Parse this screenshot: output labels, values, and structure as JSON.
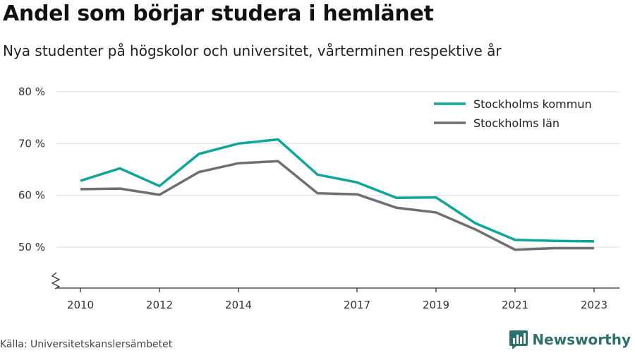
{
  "header": {
    "title": "Andel som börjar studera i hemlänet",
    "subtitle": "Nya studenter på högskolor och universitet, vårterminen respektive år"
  },
  "footer": {
    "source": "Källa: Universitetskanslersämbetet",
    "brand": "Newsworthy",
    "brand_icon": "newsworthy-logo-icon"
  },
  "colors": {
    "kommun": "#0fa59a",
    "lan": "#6e6e73",
    "grid": "#dddddd",
    "axis": "#333333",
    "brand": "#2e6f6b"
  },
  "chart_data": {
    "type": "line",
    "x": [
      2010,
      2011,
      2012,
      2013,
      2014,
      2015,
      2016,
      2017,
      2018,
      2019,
      2020,
      2021,
      2022,
      2023
    ],
    "x_tick_labels": [
      "2010",
      "2012",
      "2014",
      "2017",
      "2019",
      "2021",
      "2023"
    ],
    "y_tick_labels": [
      "50 %",
      "60 %",
      "70 %",
      "80 %"
    ],
    "y_ticks": [
      50,
      60,
      70,
      80
    ],
    "ylim": [
      42,
      80
    ],
    "xlim": [
      2009.4,
      2023.7
    ],
    "axis_break": true,
    "grid": true,
    "legend_position": "top-right",
    "series": [
      {
        "name": "Stockholms kommun",
        "color": "#0fa59a",
        "values": [
          62.8,
          65.2,
          61.8,
          68.0,
          70.0,
          70.8,
          64.0,
          62.5,
          59.5,
          59.6,
          54.6,
          51.4,
          51.2,
          51.1
        ]
      },
      {
        "name": "Stockholms län",
        "color": "#6e6e73",
        "values": [
          61.2,
          61.3,
          60.1,
          64.5,
          66.2,
          66.6,
          60.4,
          60.2,
          57.6,
          56.7,
          53.4,
          49.5,
          49.8,
          49.8
        ]
      }
    ]
  }
}
